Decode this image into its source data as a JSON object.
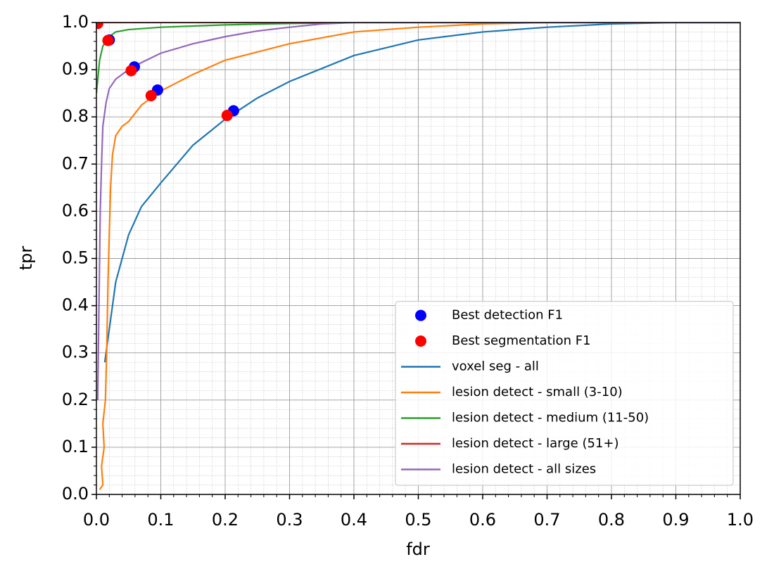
{
  "chart_data": {
    "type": "line",
    "xlabel": "fdr",
    "ylabel": "tpr",
    "xlim": [
      0,
      1
    ],
    "ylim": [
      0,
      1
    ],
    "xticks": [
      {
        "value": 0,
        "label": "0.0"
      },
      0.1,
      0.2,
      0.3,
      0.4,
      0.5,
      0.6,
      0.7,
      0.8,
      0.9,
      {
        "value": 1,
        "label": "1.0"
      }
    ],
    "yticks": [
      {
        "value": 0,
        "label": "0.0"
      },
      0.1,
      0.2,
      0.3,
      0.4,
      0.5,
      0.6,
      0.7,
      0.8,
      0.9,
      {
        "value": 1,
        "label": "1.0"
      }
    ],
    "grid": true,
    "minor_grid": true,
    "legend": "lower right",
    "series": [
      {
        "name": "Best detection F1",
        "color": "#0000ff",
        "style": "marker",
        "x": [
          0.0,
          0.02,
          0.059,
          0.095,
          0.213
        ],
        "values": [
          1.0,
          0.963,
          0.906,
          0.857,
          0.813
        ]
      },
      {
        "name": "Best segmentation F1",
        "color": "#ff0000",
        "style": "marker",
        "x": [
          0.002,
          0.018,
          0.054,
          0.085,
          0.203
        ],
        "values": [
          0.998,
          0.962,
          0.898,
          0.845,
          0.803
        ]
      },
      {
        "name": "voxel seg - all",
        "color": "#1f77b4",
        "style": "line",
        "x": [
          0.013,
          0.02,
          0.03,
          0.05,
          0.07,
          0.1,
          0.15,
          0.2,
          0.25,
          0.3,
          0.4,
          0.5,
          0.6,
          0.7,
          0.8,
          0.9,
          1.0
        ],
        "values": [
          0.28,
          0.35,
          0.45,
          0.55,
          0.61,
          0.66,
          0.74,
          0.795,
          0.84,
          0.875,
          0.93,
          0.963,
          0.98,
          0.99,
          0.997,
          1.0,
          1.0
        ]
      },
      {
        "name": "lesion detect - small (3-10)",
        "color": "#ff7f0e",
        "style": "line",
        "x": [
          0.005,
          0.01,
          0.008,
          0.012,
          0.01,
          0.014,
          0.016,
          0.018,
          0.02,
          0.022,
          0.025,
          0.03,
          0.04,
          0.05,
          0.07,
          0.1,
          0.15,
          0.2,
          0.3,
          0.4,
          0.5,
          0.6,
          0.7,
          1.0
        ],
        "values": [
          0.01,
          0.02,
          0.06,
          0.1,
          0.15,
          0.2,
          0.3,
          0.45,
          0.55,
          0.65,
          0.72,
          0.76,
          0.78,
          0.79,
          0.825,
          0.855,
          0.89,
          0.92,
          0.955,
          0.98,
          0.99,
          0.997,
          1.0,
          1.0
        ]
      },
      {
        "name": "lesion detect - medium (11-50)",
        "color": "#2ca02c",
        "style": "line",
        "x": [
          0.0,
          0.005,
          0.01,
          0.02,
          0.03,
          0.05,
          0.1,
          0.2,
          0.3,
          0.4,
          1.0
        ],
        "values": [
          0.85,
          0.92,
          0.95,
          0.97,
          0.98,
          0.985,
          0.99,
          0.995,
          0.998,
          1.0,
          1.0
        ]
      },
      {
        "name": "lesion detect - large (51+)",
        "color": "#d62728",
        "style": "line",
        "x": [
          0.0,
          0.005,
          1.0
        ],
        "values": [
          0.99,
          1.0,
          1.0
        ]
      },
      {
        "name": "lesion detect - all sizes",
        "color": "#9467bd",
        "style": "line",
        "x": [
          0.002,
          0.004,
          0.006,
          0.008,
          0.01,
          0.015,
          0.02,
          0.03,
          0.05,
          0.07,
          0.1,
          0.15,
          0.2,
          0.25,
          0.3,
          0.35,
          0.4,
          1.0
        ],
        "values": [
          0.2,
          0.4,
          0.6,
          0.7,
          0.78,
          0.83,
          0.86,
          0.88,
          0.9,
          0.915,
          0.935,
          0.955,
          0.97,
          0.982,
          0.99,
          0.997,
          1.0,
          1.0
        ]
      }
    ]
  }
}
